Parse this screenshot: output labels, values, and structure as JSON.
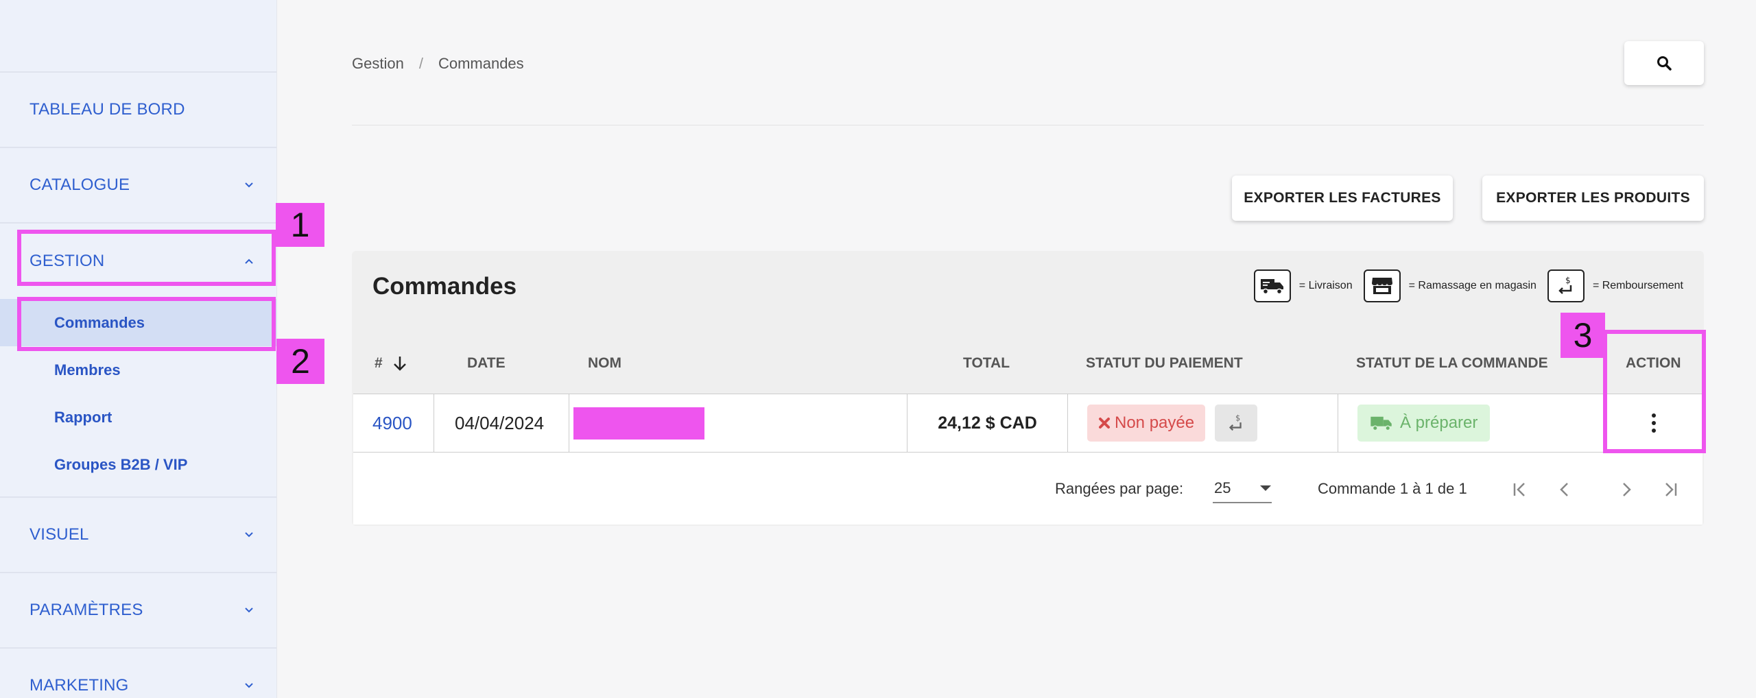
{
  "sidebar": {
    "items": [
      {
        "label": "TABLEAU DE BORD"
      },
      {
        "label": "CATALOGUE"
      },
      {
        "label": "GESTION"
      },
      {
        "label": "VISUEL"
      },
      {
        "label": "PARAMÈTRES"
      },
      {
        "label": "MARKETING"
      }
    ],
    "gestion_subitems": [
      {
        "label": "Commandes",
        "active": true
      },
      {
        "label": "Membres"
      },
      {
        "label": "Rapport"
      },
      {
        "label": "Groupes B2B / VIP"
      }
    ]
  },
  "breadcrumb": {
    "root": "Gestion",
    "separator": "/",
    "current": "Commandes"
  },
  "toolbar": {
    "export_invoices": "EXPORTER LES FACTURES",
    "export_products": "EXPORTER LES PRODUITS"
  },
  "orders": {
    "title": "Commandes",
    "legend": {
      "delivery": "= Livraison",
      "pickup": "= Ramassage en magasin",
      "refund": "= Remboursement"
    },
    "columns": {
      "number": "#",
      "date": "DATE",
      "name": "NOM",
      "total": "TOTAL",
      "payment_status": "STATUT DU PAIEMENT",
      "order_status": "STATUT DE LA COMMANDE",
      "action": "ACTION"
    },
    "rows": [
      {
        "number": "4900",
        "date": "04/04/2024",
        "total": "24,12 $ CAD",
        "payment_status": "Non payée",
        "order_status": "À préparer"
      }
    ],
    "pagination": {
      "rows_per_page_label": "Rangées par page:",
      "rows_per_page": "25",
      "count": "Commande 1 à 1 de 1"
    }
  },
  "annotations": {
    "one": "1",
    "two": "2",
    "three": "3"
  },
  "colors": {
    "accent": "#2f5fcf",
    "annotation": "#ee55ee",
    "error": "#d54a4a",
    "success": "#6bb36b"
  }
}
